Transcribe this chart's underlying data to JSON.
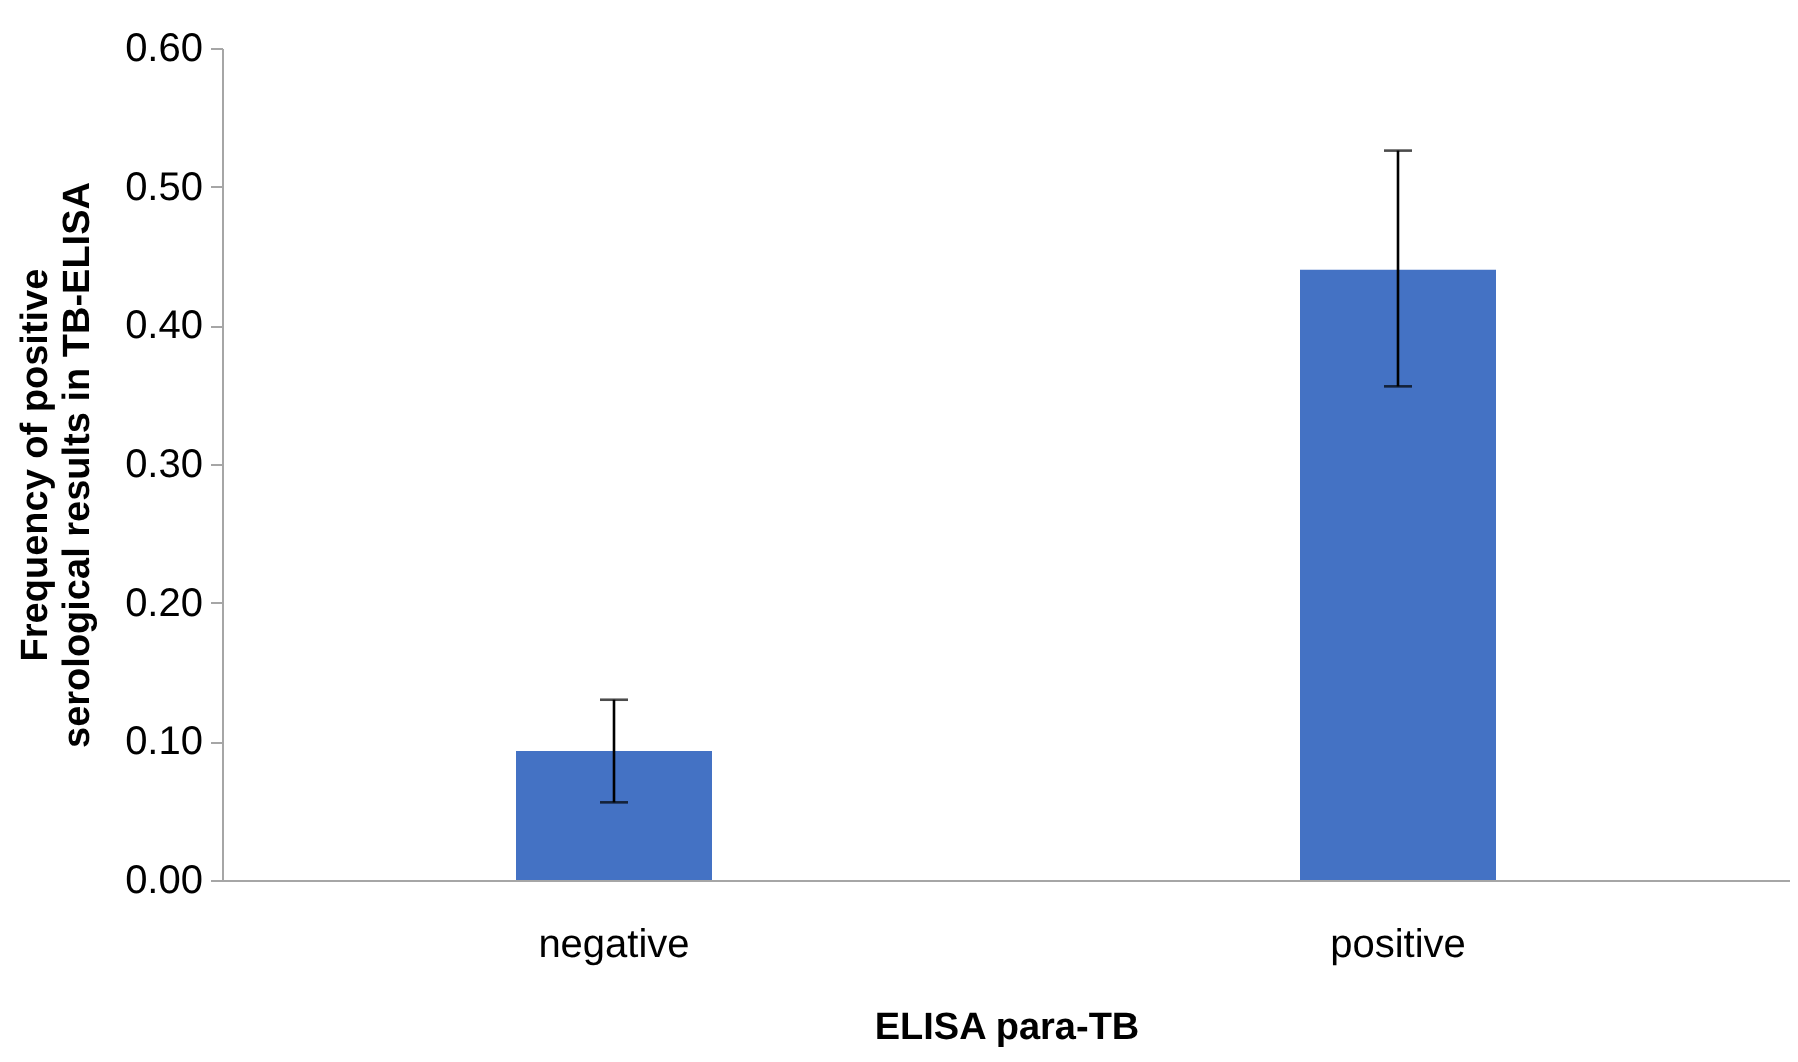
{
  "chart_data": {
    "type": "bar",
    "xlabel": "ELISA para-TB",
    "ylabel": "Frequency of positive serological results in TB-ELISA",
    "categories": [
      "negative",
      "positive"
    ],
    "values": [
      0.093,
      0.44
    ],
    "errors": [
      [
        0.056,
        0.13
      ],
      [
        0.356,
        0.526
      ]
    ],
    "color": "#4472c4",
    "ylim": [
      0,
      0.6
    ],
    "yticks": [
      {
        "value": 0,
        "label": "0.00"
      },
      {
        "value": 0.1,
        "label": "0.10"
      },
      {
        "value": 0.2,
        "label": "0.20"
      },
      {
        "value": 0.3,
        "label": "0.30"
      },
      {
        "value": 0.4,
        "label": "0.40"
      },
      {
        "value": 0.5,
        "label": "0.50"
      },
      {
        "value": 0.6,
        "label": "0.60"
      }
    ],
    "grid": false
  }
}
